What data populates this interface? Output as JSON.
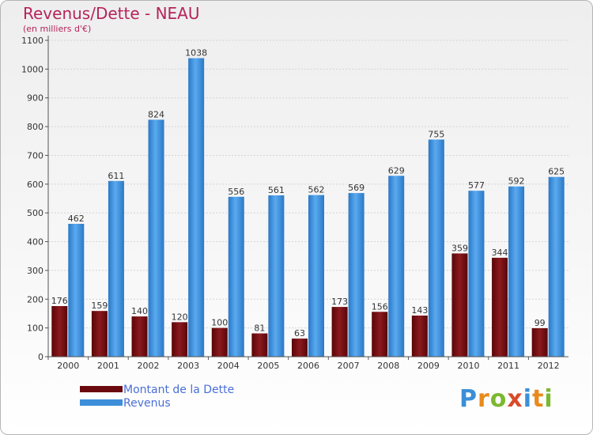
{
  "title": "Revenus/Dette - NEAU",
  "subtitle": "(en milliers d'€)",
  "brand": "Proxiti",
  "colors": {
    "dette": "#7a0f12",
    "revenus": "#3d8fd9",
    "title": "#b5245a",
    "legend_text": "#4a6fd6"
  },
  "legend": [
    {
      "label": "Montant de la Dette",
      "color": "#6a0a0e"
    },
    {
      "label": "Revenus",
      "color": "#3d8fd9"
    }
  ],
  "chart_data": {
    "type": "bar",
    "title": "Revenus/Dette - NEAU",
    "subtitle": "(en milliers d'€)",
    "categories": [
      "2000",
      "2001",
      "2002",
      "2003",
      "2004",
      "2005",
      "2006",
      "2007",
      "2008",
      "2009",
      "2010",
      "2011",
      "2012"
    ],
    "series": [
      {
        "name": "Montant de la Dette",
        "values": [
          176,
          159,
          140,
          120,
          100,
          81,
          63,
          173,
          156,
          143,
          359,
          344,
          99
        ]
      },
      {
        "name": "Revenus",
        "values": [
          462,
          611,
          824,
          1038,
          556,
          561,
          562,
          569,
          629,
          755,
          577,
          592,
          625
        ]
      }
    ],
    "ylim": [
      0,
      1100
    ],
    "yticks": [
      0,
      100,
      200,
      300,
      400,
      500,
      600,
      700,
      800,
      900,
      1000,
      1100
    ],
    "grid": true,
    "legend_position": "bottom-left"
  }
}
